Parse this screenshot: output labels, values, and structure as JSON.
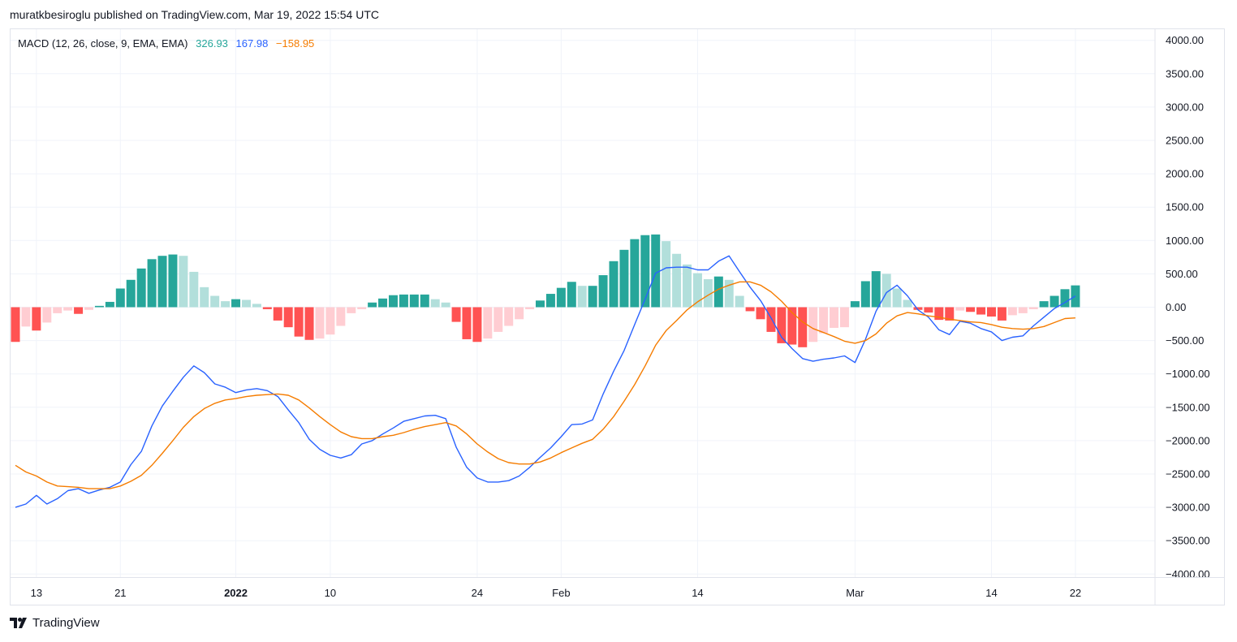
{
  "header": {
    "text": "muratkbesiroglu published on TradingView.com, Mar 19, 2022 15:54 UTC"
  },
  "legend": {
    "name": "MACD (12, 26, close, 9, EMA, EMA)",
    "histogram_value": "326.93",
    "macd_value": "167.98",
    "signal_value": "−158.95"
  },
  "footer": {
    "brand": "TradingView"
  },
  "colors": {
    "macd_line": "#2962ff",
    "signal_line": "#f57c00",
    "hist_pos_strong": "#26a69a",
    "hist_pos_weak": "#b2dfdb",
    "hist_neg_strong": "#ff5252",
    "hist_neg_weak": "#ffcdd2",
    "grid": "#f0f3fa"
  },
  "chart_data": {
    "type": "line",
    "title": "MACD (12, 26, close, 9, EMA, EMA)",
    "ylim": [
      -4000,
      4000
    ],
    "y_ticks": [
      "4000.00",
      "3500.00",
      "3000.00",
      "2500.00",
      "2000.00",
      "1500.00",
      "1000.00",
      "500.00",
      "0.00",
      "−500.00",
      "−1000.00",
      "−1500.00",
      "−2000.00",
      "−2500.00",
      "−3000.00",
      "−3500.00",
      "−4000.00"
    ],
    "x_ticks": [
      {
        "label": "13",
        "index": 2,
        "bold": false
      },
      {
        "label": "21",
        "index": 10,
        "bold": false
      },
      {
        "label": "2022",
        "index": 21,
        "bold": true
      },
      {
        "label": "10",
        "index": 30,
        "bold": false
      },
      {
        "label": "24",
        "index": 44,
        "bold": false
      },
      {
        "label": "Feb",
        "index": 52,
        "bold": false
      },
      {
        "label": "14",
        "index": 65,
        "bold": false
      },
      {
        "label": "Mar",
        "index": 80,
        "bold": false
      },
      {
        "label": "14",
        "index": 93,
        "bold": false
      },
      {
        "label": "22",
        "index": 101,
        "bold": false
      }
    ],
    "histogram": [
      -520,
      -290,
      -350,
      -230,
      -90,
      -50,
      -100,
      -40,
      20,
      80,
      280,
      410,
      580,
      720,
      770,
      790,
      770,
      530,
      300,
      170,
      90,
      120,
      110,
      50,
      -30,
      -200,
      -300,
      -440,
      -490,
      -470,
      -410,
      -280,
      -90,
      -30,
      70,
      130,
      180,
      190,
      190,
      190,
      120,
      70,
      -220,
      -480,
      -520,
      -470,
      -370,
      -280,
      -180,
      -30,
      100,
      200,
      290,
      380,
      320,
      320,
      480,
      690,
      860,
      1020,
      1080,
      1090,
      990,
      800,
      640,
      510,
      420,
      460,
      410,
      170,
      -60,
      -180,
      -370,
      -540,
      -560,
      -600,
      -520,
      -390,
      -310,
      -300,
      90,
      390,
      540,
      500,
      280,
      110,
      -40,
      -80,
      -190,
      -200,
      -50,
      -70,
      -110,
      -140,
      -200,
      -120,
      -90,
      -30,
      90,
      170,
      270,
      327
    ],
    "series": [
      {
        "name": "MACD",
        "values": [
          -3000,
          -2950,
          -2820,
          -2950,
          -2870,
          -2750,
          -2720,
          -2790,
          -2740,
          -2700,
          -2620,
          -2360,
          -2160,
          -1780,
          -1480,
          -1260,
          -1050,
          -880,
          -980,
          -1150,
          -1200,
          -1280,
          -1240,
          -1220,
          -1250,
          -1340,
          -1540,
          -1730,
          -1980,
          -2130,
          -2220,
          -2260,
          -2210,
          -2050,
          -2000,
          -1900,
          -1810,
          -1710,
          -1670,
          -1630,
          -1620,
          -1670,
          -2100,
          -2400,
          -2560,
          -2620,
          -2620,
          -2600,
          -2530,
          -2400,
          -2250,
          -2110,
          -1940,
          -1760,
          -1750,
          -1690,
          -1300,
          -960,
          -650,
          -260,
          120,
          510,
          590,
          600,
          600,
          560,
          560,
          690,
          770,
          530,
          300,
          100,
          -160,
          -450,
          -620,
          -770,
          -810,
          -780,
          -760,
          -730,
          -830,
          -480,
          -60,
          220,
          330,
          170,
          -40,
          -150,
          -340,
          -410,
          -210,
          -240,
          -320,
          -370,
          -500,
          -450,
          -430,
          -280,
          -150,
          -20,
          70,
          168
        ]
      },
      {
        "name": "Signal",
        "values": [
          -2370,
          -2470,
          -2530,
          -2620,
          -2680,
          -2690,
          -2700,
          -2720,
          -2720,
          -2720,
          -2680,
          -2610,
          -2520,
          -2370,
          -2190,
          -2000,
          -1800,
          -1640,
          -1520,
          -1440,
          -1390,
          -1370,
          -1340,
          -1320,
          -1310,
          -1300,
          -1320,
          -1390,
          -1510,
          -1640,
          -1760,
          -1870,
          -1940,
          -1970,
          -1970,
          -1940,
          -1920,
          -1880,
          -1830,
          -1790,
          -1760,
          -1730,
          -1780,
          -1900,
          -2050,
          -2170,
          -2270,
          -2330,
          -2350,
          -2350,
          -2320,
          -2260,
          -2180,
          -2110,
          -2040,
          -1980,
          -1830,
          -1640,
          -1410,
          -1160,
          -880,
          -570,
          -350,
          -200,
          -40,
          80,
          180,
          270,
          330,
          380,
          380,
          330,
          230,
          90,
          -80,
          -220,
          -320,
          -380,
          -440,
          -510,
          -540,
          -500,
          -400,
          -240,
          -130,
          -80,
          -100,
          -130,
          -150,
          -180,
          -200,
          -220,
          -230,
          -260,
          -300,
          -320,
          -330,
          -320,
          -290,
          -230,
          -170,
          -160
        ]
      }
    ]
  }
}
